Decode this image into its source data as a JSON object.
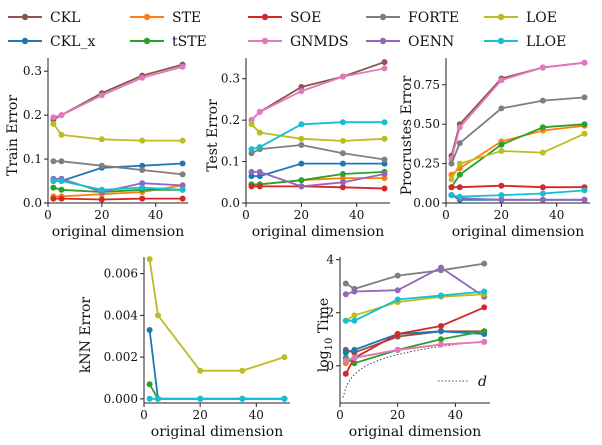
{
  "legend": [
    {
      "name": "CKL",
      "color": "#8c564b"
    },
    {
      "name": "CKL_x",
      "color": "#1f77b4"
    },
    {
      "name": "STE",
      "color": "#ff7f0e"
    },
    {
      "name": "tSTE",
      "color": "#2ca02c"
    },
    {
      "name": "SOE",
      "color": "#d62728"
    },
    {
      "name": "GNMDS",
      "color": "#e377c2"
    },
    {
      "name": "FORTE",
      "color": "#7f7f7f"
    },
    {
      "name": "OENN",
      "color": "#9467bd"
    },
    {
      "name": "LOE",
      "color": "#bcbd22"
    },
    {
      "name": "LLOE",
      "color": "#17becf"
    }
  ],
  "chart_data": [
    {
      "type": "line",
      "xlabel": "original dimension",
      "ylabel": "Train Error",
      "xlim": [
        0,
        52
      ],
      "ylim": [
        0,
        0.33
      ],
      "xticks": [
        0,
        20,
        40
      ],
      "yticks": [
        0.0,
        0.1,
        0.2,
        0.3
      ],
      "x": [
        2,
        5,
        20,
        35,
        50
      ],
      "series": [
        {
          "name": "CKL",
          "values": [
            0.19,
            0.2,
            0.25,
            0.29,
            0.315
          ]
        },
        {
          "name": "CKL_x",
          "values": [
            0.05,
            0.05,
            0.08,
            0.085,
            0.09
          ]
        },
        {
          "name": "STE",
          "values": [
            0.015,
            0.015,
            0.02,
            0.025,
            0.04
          ]
        },
        {
          "name": "tSTE",
          "values": [
            0.035,
            0.03,
            0.025,
            0.03,
            0.03
          ]
        },
        {
          "name": "SOE",
          "values": [
            0.01,
            0.01,
            0.008,
            0.01,
            0.01
          ]
        },
        {
          "name": "GNMDS",
          "values": [
            0.195,
            0.2,
            0.245,
            0.285,
            0.31
          ]
        },
        {
          "name": "FORTE",
          "values": [
            0.095,
            0.095,
            0.085,
            0.075,
            0.065
          ]
        },
        {
          "name": "OENN",
          "values": [
            0.055,
            0.055,
            0.025,
            0.045,
            0.04
          ]
        },
        {
          "name": "LOE",
          "values": [
            0.18,
            0.155,
            0.145,
            0.142,
            0.142
          ]
        },
        {
          "name": "LLOE",
          "values": [
            0.05,
            0.05,
            0.03,
            0.035,
            0.03
          ]
        }
      ]
    },
    {
      "type": "line",
      "xlabel": "original dimension",
      "ylabel": "Test Error",
      "xlim": [
        0,
        52
      ],
      "ylim": [
        0,
        0.35
      ],
      "xticks": [
        0,
        20,
        40
      ],
      "yticks": [
        0.0,
        0.1,
        0.2,
        0.3
      ],
      "x": [
        2,
        5,
        20,
        35,
        50
      ],
      "series": [
        {
          "name": "CKL",
          "values": [
            0.2,
            0.22,
            0.28,
            0.305,
            0.34
          ]
        },
        {
          "name": "CKL_x",
          "values": [
            0.065,
            0.065,
            0.095,
            0.095,
            0.095
          ]
        },
        {
          "name": "STE",
          "values": [
            0.045,
            0.045,
            0.055,
            0.06,
            0.06
          ]
        },
        {
          "name": "tSTE",
          "values": [
            0.045,
            0.045,
            0.055,
            0.07,
            0.075
          ]
        },
        {
          "name": "SOE",
          "values": [
            0.04,
            0.04,
            0.04,
            0.038,
            0.035
          ]
        },
        {
          "name": "GNMDS",
          "values": [
            0.2,
            0.22,
            0.27,
            0.305,
            0.325
          ]
        },
        {
          "name": "FORTE",
          "values": [
            0.12,
            0.13,
            0.14,
            0.12,
            0.105
          ]
        },
        {
          "name": "OENN",
          "values": [
            0.075,
            0.075,
            0.04,
            0.05,
            0.07
          ]
        },
        {
          "name": "LOE",
          "values": [
            0.19,
            0.17,
            0.155,
            0.15,
            0.155
          ]
        },
        {
          "name": "LLOE",
          "values": [
            0.13,
            0.135,
            0.19,
            0.195,
            0.195
          ]
        }
      ]
    },
    {
      "type": "line",
      "xlabel": "original dimension",
      "ylabel": "Procrustes Error",
      "xlim": [
        0,
        52
      ],
      "ylim": [
        0,
        0.92
      ],
      "xticks": [
        0,
        20,
        40
      ],
      "yticks": [
        0.0,
        0.25,
        0.5,
        0.75
      ],
      "x": [
        2,
        5,
        20,
        35,
        50
      ],
      "series": [
        {
          "name": "CKL",
          "values": [
            0.3,
            0.5,
            0.79,
            0.86,
            0.89
          ]
        },
        {
          "name": "CKL_x",
          "values": [
            0.05,
            0.02,
            0.02,
            0.02,
            0.02
          ]
        },
        {
          "name": "STE",
          "values": [
            0.18,
            0.22,
            0.39,
            0.46,
            0.49
          ]
        },
        {
          "name": "tSTE",
          "values": [
            0.1,
            0.18,
            0.37,
            0.48,
            0.5
          ]
        },
        {
          "name": "SOE",
          "values": [
            0.1,
            0.1,
            0.11,
            0.1,
            0.1
          ]
        },
        {
          "name": "GNMDS",
          "values": [
            0.28,
            0.48,
            0.78,
            0.86,
            0.89
          ]
        },
        {
          "name": "FORTE",
          "values": [
            0.25,
            0.38,
            0.6,
            0.65,
            0.67
          ]
        },
        {
          "name": "OENN",
          "values": [
            0.05,
            0.03,
            0.02,
            0.02,
            0.02
          ]
        },
        {
          "name": "LOE",
          "values": [
            0.15,
            0.25,
            0.33,
            0.32,
            0.44
          ]
        },
        {
          "name": "LLOE",
          "values": [
            0.05,
            0.04,
            0.05,
            0.06,
            0.08
          ]
        }
      ]
    },
    {
      "type": "line",
      "xlabel": "original dimension",
      "ylabel": "kNN Error",
      "xlim": [
        0,
        52
      ],
      "ylim": [
        -0.0002,
        0.0068
      ],
      "xticks": [
        0,
        20,
        40
      ],
      "yticks": [
        0.0,
        0.002,
        0.004,
        0.006
      ],
      "x": [
        2,
        5,
        20,
        35,
        50
      ],
      "series": [
        {
          "name": "CKL_x",
          "values": [
            0.0033,
            0.0,
            0.0,
            0.0,
            0.0
          ]
        },
        {
          "name": "tSTE",
          "values": [
            0.0007,
            0.0,
            0.0,
            0.0,
            0.0
          ]
        },
        {
          "name": "LOE",
          "values": [
            0.0067,
            0.004,
            0.00135,
            0.00135,
            0.002
          ]
        },
        {
          "name": "LLOE",
          "values": [
            0.0,
            0.0,
            0.0,
            0.0,
            0.0
          ]
        }
      ]
    },
    {
      "type": "line",
      "xlabel": "original dimension",
      "ylabel": "log10 Time",
      "ylabel_parts": [
        "log",
        "10",
        " Time"
      ],
      "xlim": [
        0,
        52
      ],
      "ylim": [
        -1.4,
        4.1
      ],
      "xticks": [
        0,
        20,
        40
      ],
      "yticks": [
        0,
        2,
        4
      ],
      "x": [
        2,
        5,
        20,
        35,
        50
      ],
      "series": [
        {
          "name": "CKL",
          "values": [
            0.6,
            0.5,
            1.1,
            1.3,
            1.3
          ]
        },
        {
          "name": "CKL_x",
          "values": [
            0.5,
            0.6,
            1.2,
            1.3,
            1.2
          ]
        },
        {
          "name": "STE",
          "values": [
            0.1,
            0.3,
            0.6,
            0.8,
            0.9
          ]
        },
        {
          "name": "tSTE",
          "values": [
            0.3,
            0.1,
            0.6,
            1.0,
            1.3
          ]
        },
        {
          "name": "SOE",
          "values": [
            -0.3,
            0.3,
            1.2,
            1.5,
            2.2
          ]
        },
        {
          "name": "GNMDS",
          "values": [
            0.2,
            0.3,
            0.6,
            0.8,
            0.9
          ]
        },
        {
          "name": "FORTE",
          "values": [
            3.1,
            2.9,
            3.4,
            3.6,
            3.85
          ]
        },
        {
          "name": "OENN",
          "values": [
            2.7,
            2.8,
            2.85,
            3.7,
            2.6
          ]
        },
        {
          "name": "LOE",
          "values": [
            1.7,
            1.9,
            2.4,
            2.6,
            2.7
          ]
        },
        {
          "name": "LLOE",
          "values": [
            1.7,
            1.7,
            2.5,
            2.65,
            2.8
          ]
        }
      ],
      "reference_line": {
        "name": "d",
        "style": "dotted",
        "x_start": 1,
        "x_end": 50
      }
    }
  ]
}
